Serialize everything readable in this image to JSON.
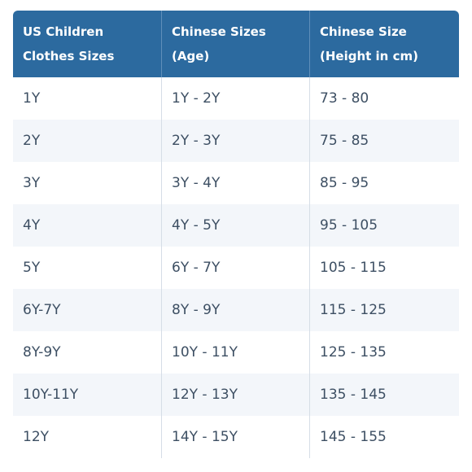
{
  "table": {
    "headers": [
      "US Children Clothes Sizes",
      "Chinese Sizes (Age)",
      "Chinese Size (Height in cm)"
    ],
    "rows": [
      [
        "1Y",
        "1Y - 2Y",
        "73 - 80"
      ],
      [
        "2Y",
        "2Y - 3Y",
        "75 - 85"
      ],
      [
        "3Y",
        "3Y - 4Y",
        "85 - 95"
      ],
      [
        "4Y",
        "4Y - 5Y",
        "95 - 105"
      ],
      [
        "5Y",
        "6Y - 7Y",
        "105 - 115"
      ],
      [
        "6Y-7Y",
        "8Y - 9Y",
        "115 - 125"
      ],
      [
        "8Y-9Y",
        "10Y - 11Y",
        "125 - 135"
      ],
      [
        "10Y-11Y",
        "12Y - 13Y",
        "135 - 145"
      ],
      [
        "12Y",
        "14Y - 15Y",
        "145 - 155"
      ]
    ]
  },
  "colors": {
    "header_bg": "#2c6a9f",
    "header_text": "#ffffff",
    "body_text": "#3d4f63",
    "stripe_bg": "#f3f6fa"
  }
}
